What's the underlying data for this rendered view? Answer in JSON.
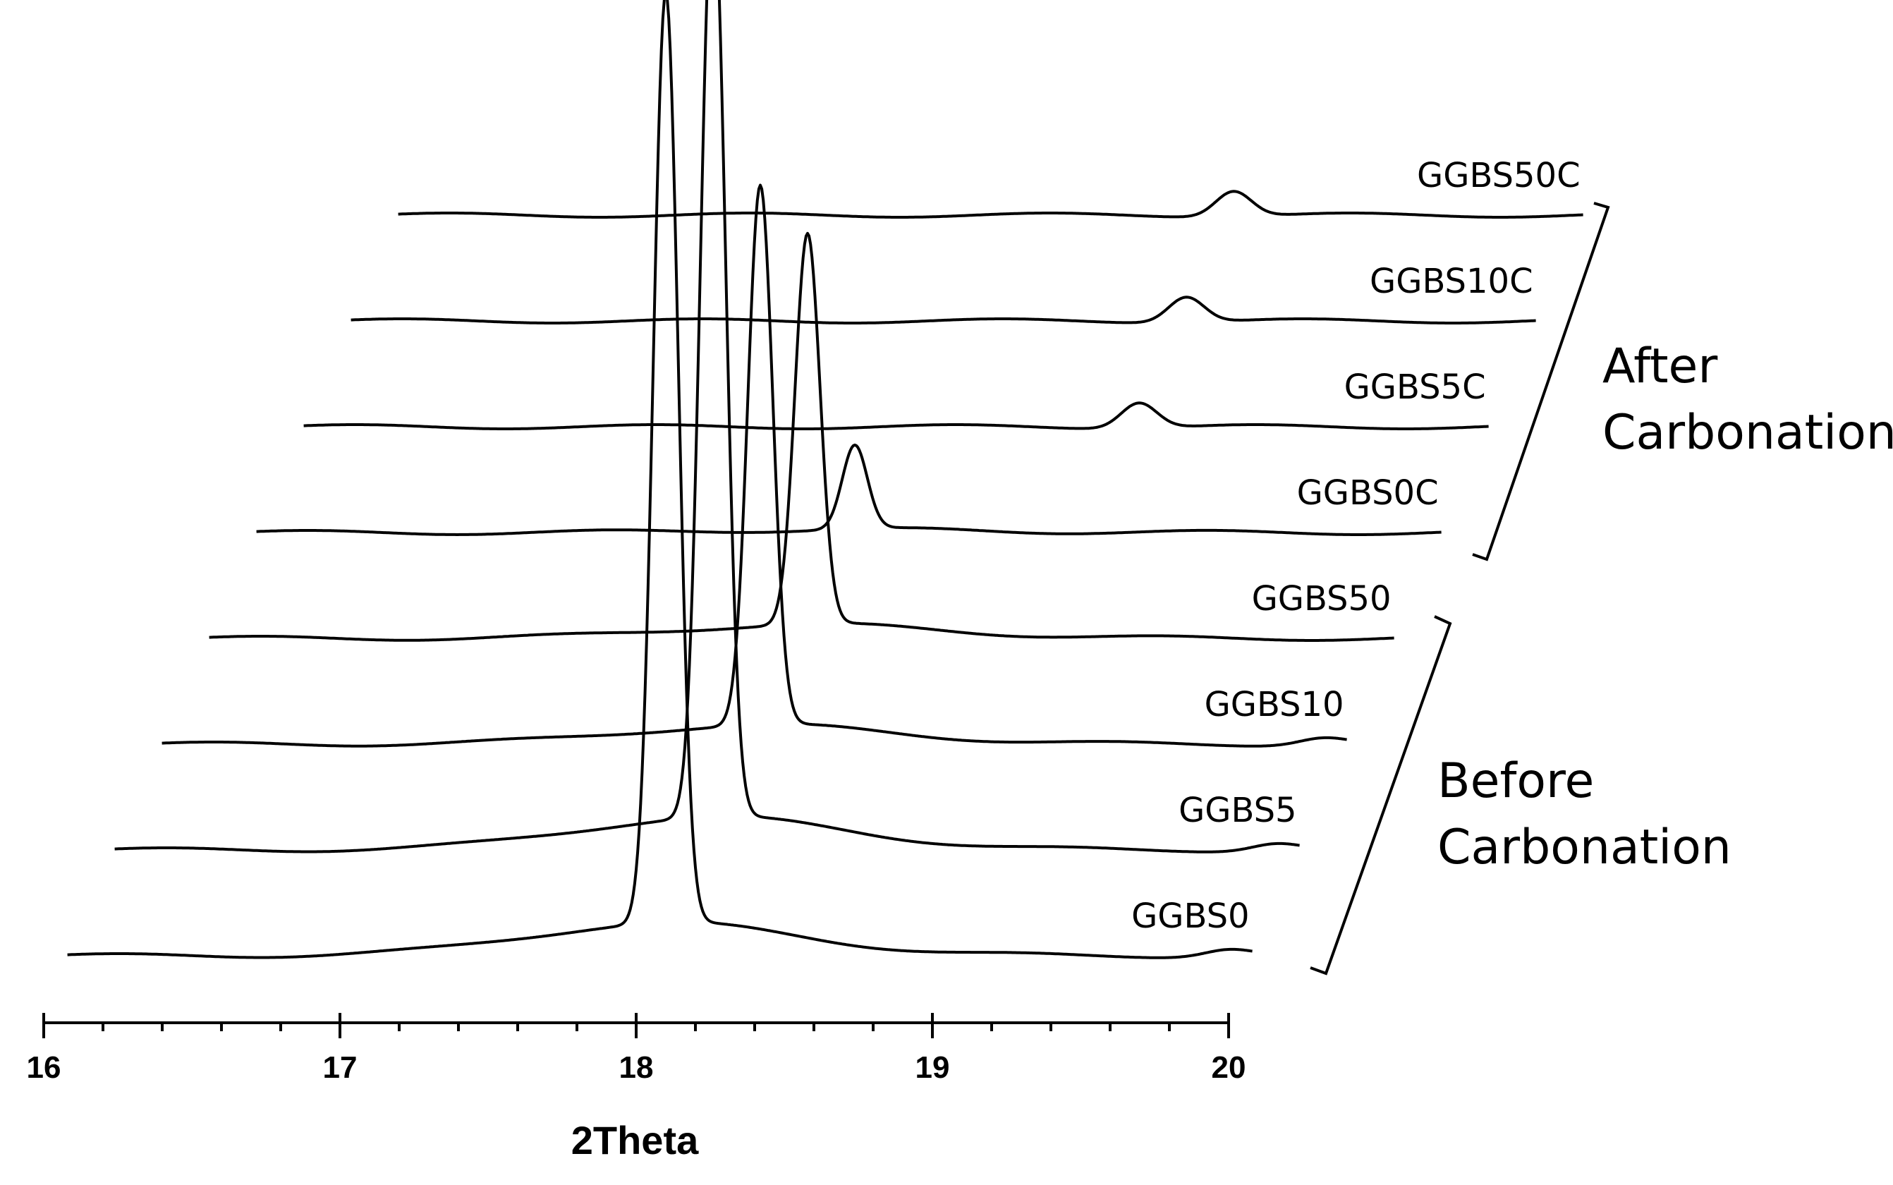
{
  "chart_data": {
    "type": "line",
    "style": "stacked waterfall (offset traces)",
    "title": "",
    "xlabel": "2Theta",
    "ylabel": "",
    "xlim": [
      16,
      20
    ],
    "x_ticks": [
      16,
      17,
      18,
      19,
      20
    ],
    "x_tick_labels": [
      "16",
      "17",
      "18",
      "19",
      "20"
    ],
    "grid": false,
    "series": [
      {
        "name": "GGBS0",
        "group": "before",
        "peak_2theta": 18.1,
        "peak_relative_intensity": 1.0,
        "secondary_peak_2theta": null,
        "background_bump_2theta": 20.0
      },
      {
        "name": "GGBS5",
        "group": "before",
        "peak_2theta": 18.1,
        "peak_relative_intensity": 1.0,
        "secondary_peak_2theta": null,
        "background_bump_2theta": 20.0
      },
      {
        "name": "GGBS10",
        "group": "before",
        "peak_2theta": 18.1,
        "peak_relative_intensity": 0.58,
        "secondary_peak_2theta": null,
        "background_bump_2theta": 20.0
      },
      {
        "name": "GGBS50",
        "group": "before",
        "peak_2theta": 18.1,
        "peak_relative_intensity": 0.42,
        "secondary_peak_2theta": null,
        "background_bump_2theta": null
      },
      {
        "name": "GGBS0C",
        "group": "after",
        "peak_2theta": 18.1,
        "peak_relative_intensity": 0.09,
        "secondary_peak_2theta": null,
        "background_bump_2theta": null
      },
      {
        "name": "GGBS5C",
        "group": "after",
        "peak_2theta": 18.1,
        "peak_relative_intensity": 0.0,
        "secondary_peak_2theta": 18.9,
        "background_bump_2theta": null
      },
      {
        "name": "GGBS10C",
        "group": "after",
        "peak_2theta": 18.1,
        "peak_relative_intensity": 0.0,
        "secondary_peak_2theta": 18.9,
        "background_bump_2theta": null
      },
      {
        "name": "GGBS50C",
        "group": "after",
        "peak_2theta": 18.1,
        "peak_relative_intensity": 0.0,
        "secondary_peak_2theta": 18.9,
        "background_bump_2theta": null
      }
    ],
    "annotations": {
      "before": "Before Carbonation",
      "after": "After Carbonation"
    }
  },
  "labels": {
    "before_line1": "Before",
    "before_line2": "Carbonation",
    "after_line1": "After",
    "after_line2": "Carbonation"
  },
  "colors": {
    "ink": "#000000",
    "background": "#ffffff"
  }
}
